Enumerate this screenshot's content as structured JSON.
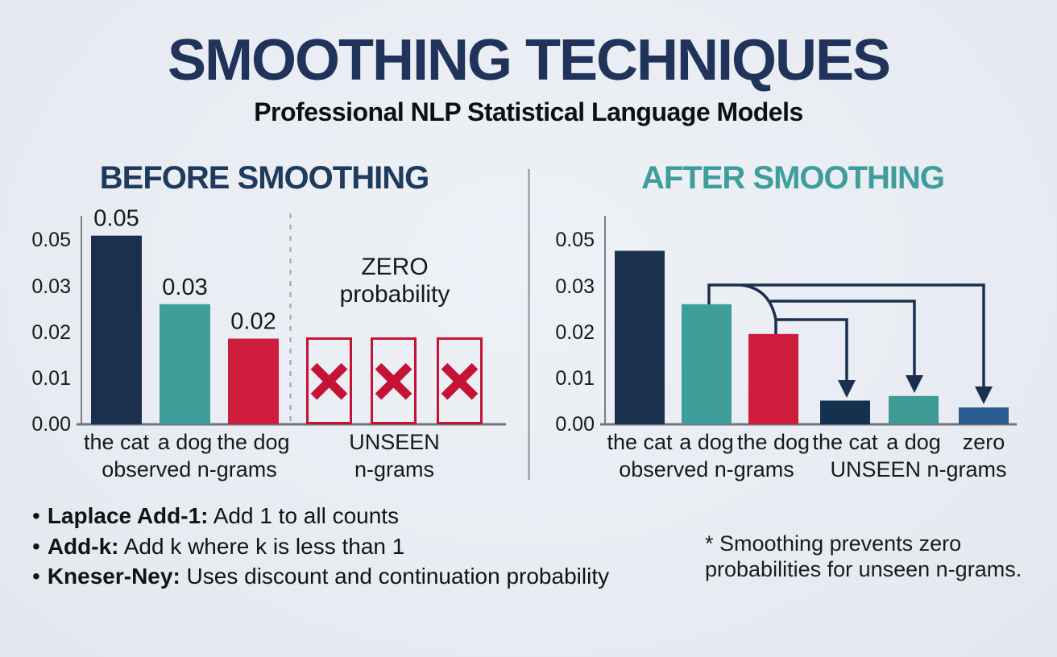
{
  "title": "SMOOTHING TECHNIQUES",
  "subtitle": "Professional NLP Statistical Language Models",
  "colors": {
    "title_navy": "#20335a",
    "header_navy": "#1e3a5c",
    "header_teal": "#3f9d9b",
    "bar_navy": "#1b2f4f",
    "bar_teal": "#3f9e99",
    "bar_red": "#cd1c3c",
    "bar_dark_navy": "#16304f",
    "bar_steel_blue": "#2a5d8f",
    "x_mark_red": "#c41334",
    "arrow_navy": "#1b2f4f",
    "axis_gray": "#7a7f88",
    "background": "#e9edf3"
  },
  "chart_data": [
    {
      "id": "before",
      "type": "bar",
      "title": "BEFORE SMOOTHING",
      "title_color": "#1e3a5c",
      "y_ticks": [
        "0.05",
        "0.03",
        "0.02",
        "0.01",
        "0.00"
      ],
      "bars": [
        {
          "category": "the cat",
          "value": 0.0515,
          "label": "0.05",
          "color": "#1b2f4f"
        },
        {
          "category": "a dog",
          "value": 0.026,
          "label": "0.03",
          "color": "#3f9e99"
        },
        {
          "category": "the dog",
          "value": 0.0185,
          "label": "0.02",
          "color": "#cd1c3c"
        }
      ],
      "unseen": {
        "annotation_line1": "ZERO",
        "annotation_line2": "probability",
        "slots": 3,
        "x_mark": "✕",
        "box_color": "#c41334",
        "category_label": "UNSEEN"
      },
      "group_labels": {
        "observed": "observed n-grams",
        "unseen": "n-grams"
      },
      "legend": "none",
      "grid": false
    },
    {
      "id": "after",
      "type": "bar",
      "title": "AFTER SMOOTHING",
      "title_color": "#3f9d9b",
      "y_ticks": [
        "0.05",
        "0.03",
        "0.02",
        "0.01",
        "0.00"
      ],
      "bars": [
        {
          "category": "the cat",
          "value": 0.045,
          "color": "#1b2f4f",
          "group": "observed"
        },
        {
          "category": "a dog",
          "value": 0.026,
          "color": "#3f9e99",
          "group": "observed"
        },
        {
          "category": "the dog",
          "value": 0.0195,
          "color": "#cd1c3c",
          "group": "observed"
        },
        {
          "category": "the cat",
          "value": 0.005,
          "color": "#16304f",
          "group": "unseen"
        },
        {
          "category": "a dog",
          "value": 0.006,
          "color": "#3f9a96",
          "group": "unseen"
        },
        {
          "category": "zero",
          "value": 0.0035,
          "color": "#2a5d8f",
          "group": "unseen"
        }
      ],
      "arrows": [
        {
          "from": "the dog (observed)",
          "to": "the cat (unseen)"
        },
        {
          "from": "observed mass",
          "to": "a dog (unseen)"
        },
        {
          "from": "a dog (observed)",
          "to": "zero (unseen)"
        }
      ],
      "group_labels": {
        "observed": "observed n-grams",
        "unseen": "UNSEEN n-grams"
      },
      "legend": "none",
      "grid": false
    }
  ],
  "notes": {
    "bullet": "•",
    "bullets": [
      {
        "term": "Laplace Add-1:",
        "desc": " Add 1 to all counts"
      },
      {
        "term": "Add-k:",
        "desc": " Add k where k is less than 1"
      },
      {
        "term": "Kneser-Ney:",
        "desc": " Uses discount and continuation probability"
      }
    ],
    "footnote_line1": "* Smoothing prevents zero",
    "footnote_line2": "probabilities for unseen n-grams."
  }
}
